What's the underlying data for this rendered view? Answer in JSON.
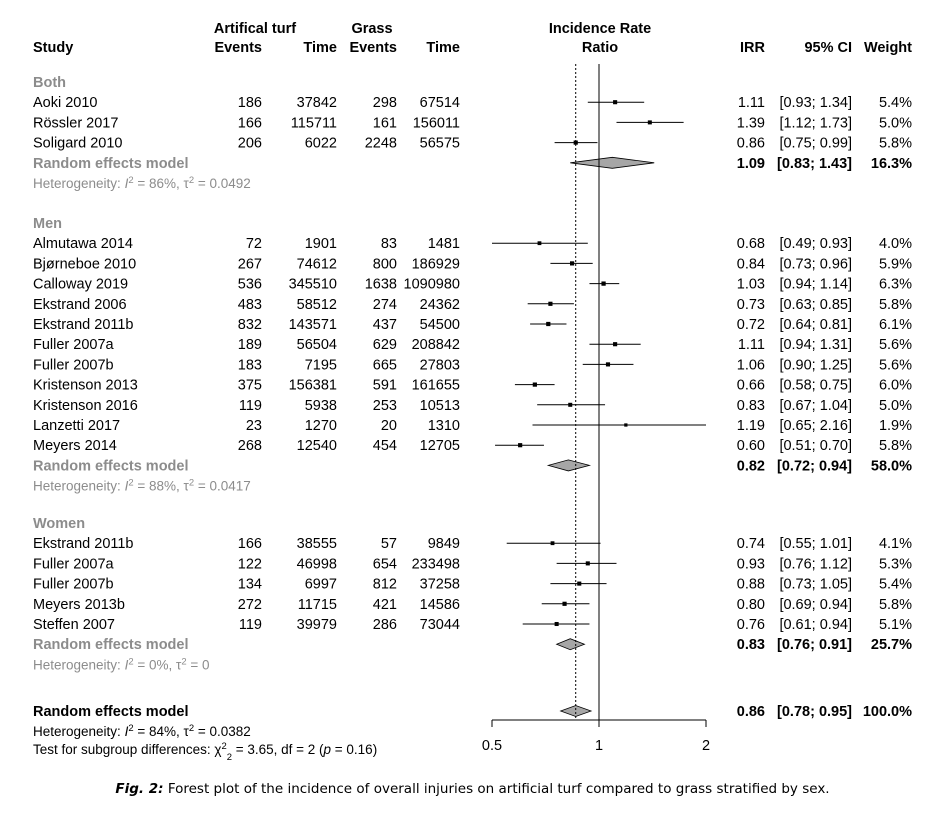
{
  "headers": {
    "study": "Study",
    "turf_group": "Artifical turf",
    "grass_group": "Grass",
    "events": "Events",
    "time": "Time",
    "irr_title_1": "Incidence Rate",
    "irr_title_2": "Ratio",
    "irr": "IRR",
    "ci": "95% CI",
    "weight": "Weight"
  },
  "colors": {
    "subgroup_text": "#8c8c8c",
    "marker": "#000000",
    "diamond_fill": "#a6a6a6"
  },
  "chart_data": {
    "type": "forest",
    "x_scale": "log",
    "xlim": [
      0.5,
      2
    ],
    "x_ticks": [
      0.5,
      1,
      2
    ],
    "x_tick_labels": [
      "0.5",
      "1",
      "2"
    ],
    "reference_line": 1,
    "overall_line": 0.86,
    "groups": [
      {
        "name": "Both",
        "studies": [
          {
            "study": "Aoki 2010",
            "turf_events": "186",
            "turf_time": "37842",
            "grass_events": "298",
            "grass_time": "67514",
            "irr": 1.11,
            "lower": 0.93,
            "upper": 1.34,
            "weight": 5.4,
            "irr_text": "1.11",
            "ci_text": "[0.93; 1.34]",
            "weight_text": "5.4%"
          },
          {
            "study": "Rössler 2017",
            "turf_events": "166",
            "turf_time": "115711",
            "grass_events": "161",
            "grass_time": "156011",
            "irr": 1.39,
            "lower": 1.12,
            "upper": 1.73,
            "weight": 5.0,
            "irr_text": "1.39",
            "ci_text": "[1.12; 1.73]",
            "weight_text": "5.0%"
          },
          {
            "study": "Soligard 2010",
            "turf_events": "206",
            "turf_time": "6022",
            "grass_events": "2248",
            "grass_time": "56575",
            "irr": 0.86,
            "lower": 0.75,
            "upper": 0.99,
            "weight": 5.8,
            "irr_text": "0.86",
            "ci_text": "[0.75; 0.99]",
            "weight_text": "5.8%"
          }
        ],
        "model": {
          "label": "Random effects model",
          "irr": 1.09,
          "lower": 0.83,
          "upper": 1.43,
          "irr_text": "1.09",
          "ci_text": "[0.83; 1.43]",
          "weight_text": "16.3%"
        },
        "heterogeneity": {
          "i2": "86%",
          "tau2": "0.0492"
        }
      },
      {
        "name": "Men",
        "studies": [
          {
            "study": "Almutawa 2014",
            "turf_events": "72",
            "turf_time": "1901",
            "grass_events": "83",
            "grass_time": "1481",
            "irr": 0.68,
            "lower": 0.49,
            "upper": 0.93,
            "weight": 4.0,
            "irr_text": "0.68",
            "ci_text": "[0.49; 0.93]",
            "weight_text": "4.0%"
          },
          {
            "study": "Bjørneboe 2010",
            "turf_events": "267",
            "turf_time": "74612",
            "grass_events": "800",
            "grass_time": "186929",
            "irr": 0.84,
            "lower": 0.73,
            "upper": 0.96,
            "weight": 5.9,
            "irr_text": "0.84",
            "ci_text": "[0.73; 0.96]",
            "weight_text": "5.9%"
          },
          {
            "study": "Calloway 2019",
            "turf_events": "536",
            "turf_time": "345510",
            "grass_events": "1638",
            "grass_time": "1090980",
            "irr": 1.03,
            "lower": 0.94,
            "upper": 1.14,
            "weight": 6.3,
            "irr_text": "1.03",
            "ci_text": "[0.94; 1.14]",
            "weight_text": "6.3%"
          },
          {
            "study": "Ekstrand 2006",
            "turf_events": "483",
            "turf_time": "58512",
            "grass_events": "274",
            "grass_time": "24362",
            "irr": 0.73,
            "lower": 0.63,
            "upper": 0.85,
            "weight": 5.8,
            "irr_text": "0.73",
            "ci_text": "[0.63; 0.85]",
            "weight_text": "5.8%"
          },
          {
            "study": "Ekstrand 2011b",
            "turf_events": "832",
            "turf_time": "143571",
            "grass_events": "437",
            "grass_time": "54500",
            "irr": 0.72,
            "lower": 0.64,
            "upper": 0.81,
            "weight": 6.1,
            "irr_text": "0.72",
            "ci_text": "[0.64; 0.81]",
            "weight_text": "6.1%"
          },
          {
            "study": "Fuller 2007a",
            "turf_events": "189",
            "turf_time": "56504",
            "grass_events": "629",
            "grass_time": "208842",
            "irr": 1.11,
            "lower": 0.94,
            "upper": 1.31,
            "weight": 5.6,
            "irr_text": "1.11",
            "ci_text": "[0.94; 1.31]",
            "weight_text": "5.6%"
          },
          {
            "study": "Fuller 2007b",
            "turf_events": "183",
            "turf_time": "7195",
            "grass_events": "665",
            "grass_time": "27803",
            "irr": 1.06,
            "lower": 0.9,
            "upper": 1.25,
            "weight": 5.6,
            "irr_text": "1.06",
            "ci_text": "[0.90; 1.25]",
            "weight_text": "5.6%"
          },
          {
            "study": "Kristenson 2013",
            "turf_events": "375",
            "turf_time": "156381",
            "grass_events": "591",
            "grass_time": "161655",
            "irr": 0.66,
            "lower": 0.58,
            "upper": 0.75,
            "weight": 6.0,
            "irr_text": "0.66",
            "ci_text": "[0.58; 0.75]",
            "weight_text": "6.0%"
          },
          {
            "study": "Kristenson 2016",
            "turf_events": "119",
            "turf_time": "5938",
            "grass_events": "253",
            "grass_time": "10513",
            "irr": 0.83,
            "lower": 0.67,
            "upper": 1.04,
            "weight": 5.0,
            "irr_text": "0.83",
            "ci_text": "[0.67; 1.04]",
            "weight_text": "5.0%"
          },
          {
            "study": "Lanzetti 2017",
            "turf_events": "23",
            "turf_time": "1270",
            "grass_events": "20",
            "grass_time": "1310",
            "irr": 1.19,
            "lower": 0.65,
            "upper": 2.16,
            "weight": 1.9,
            "irr_text": "1.19",
            "ci_text": "[0.65; 2.16]",
            "weight_text": "1.9%"
          },
          {
            "study": "Meyers 2014",
            "turf_events": "268",
            "turf_time": "12540",
            "grass_events": "454",
            "grass_time": "12705",
            "irr": 0.6,
            "lower": 0.51,
            "upper": 0.7,
            "weight": 5.8,
            "irr_text": "0.60",
            "ci_text": "[0.51; 0.70]",
            "weight_text": "5.8%"
          }
        ],
        "model": {
          "label": "Random effects model",
          "irr": 0.82,
          "lower": 0.72,
          "upper": 0.94,
          "irr_text": "0.82",
          "ci_text": "[0.72; 0.94]",
          "weight_text": "58.0%"
        },
        "heterogeneity": {
          "i2": "88%",
          "tau2": "0.0417"
        }
      },
      {
        "name": "Women",
        "studies": [
          {
            "study": "Ekstrand 2011b",
            "turf_events": "166",
            "turf_time": "38555",
            "grass_events": "57",
            "grass_time": "9849",
            "irr": 0.74,
            "lower": 0.55,
            "upper": 1.01,
            "weight": 4.1,
            "irr_text": "0.74",
            "ci_text": "[0.55; 1.01]",
            "weight_text": "4.1%"
          },
          {
            "study": "Fuller 2007a",
            "turf_events": "122",
            "turf_time": "46998",
            "grass_events": "654",
            "grass_time": "233498",
            "irr": 0.93,
            "lower": 0.76,
            "upper": 1.12,
            "weight": 5.3,
            "irr_text": "0.93",
            "ci_text": "[0.76; 1.12]",
            "weight_text": "5.3%"
          },
          {
            "study": "Fuller 2007b",
            "turf_events": "134",
            "turf_time": "6997",
            "grass_events": "812",
            "grass_time": "37258",
            "irr": 0.88,
            "lower": 0.73,
            "upper": 1.05,
            "weight": 5.4,
            "irr_text": "0.88",
            "ci_text": "[0.73; 1.05]",
            "weight_text": "5.4%"
          },
          {
            "study": "Meyers 2013b",
            "turf_events": "272",
            "turf_time": "11715",
            "grass_events": "421",
            "grass_time": "14586",
            "irr": 0.8,
            "lower": 0.69,
            "upper": 0.94,
            "weight": 5.8,
            "irr_text": "0.80",
            "ci_text": "[0.69; 0.94]",
            "weight_text": "5.8%"
          },
          {
            "study": "Steffen 2007",
            "turf_events": "119",
            "turf_time": "39979",
            "grass_events": "286",
            "grass_time": "73044",
            "irr": 0.76,
            "lower": 0.61,
            "upper": 0.94,
            "weight": 5.1,
            "irr_text": "0.76",
            "ci_text": "[0.61; 0.94]",
            "weight_text": "5.1%"
          }
        ],
        "model": {
          "label": "Random effects model",
          "irr": 0.83,
          "lower": 0.76,
          "upper": 0.91,
          "irr_text": "0.83",
          "ci_text": "[0.76; 0.91]",
          "weight_text": "25.7%"
        },
        "heterogeneity": {
          "i2": "0%",
          "tau2": "0"
        }
      }
    ],
    "overall": {
      "label": "Random effects model",
      "irr": 0.86,
      "lower": 0.78,
      "upper": 0.95,
      "irr_text": "0.86",
      "ci_text": "[0.78; 0.95]",
      "weight_text": "100.0%",
      "heterogeneity": {
        "i2": "84%",
        "tau2": "0.0382"
      },
      "subgroup_test": {
        "chi2": "3.65",
        "df": "2",
        "p": "0.16"
      }
    }
  },
  "caption": {
    "label": "Fig. 2:",
    "text": " Forest plot of the incidence of overall injuries on artificial turf compared to grass stratified by sex."
  }
}
